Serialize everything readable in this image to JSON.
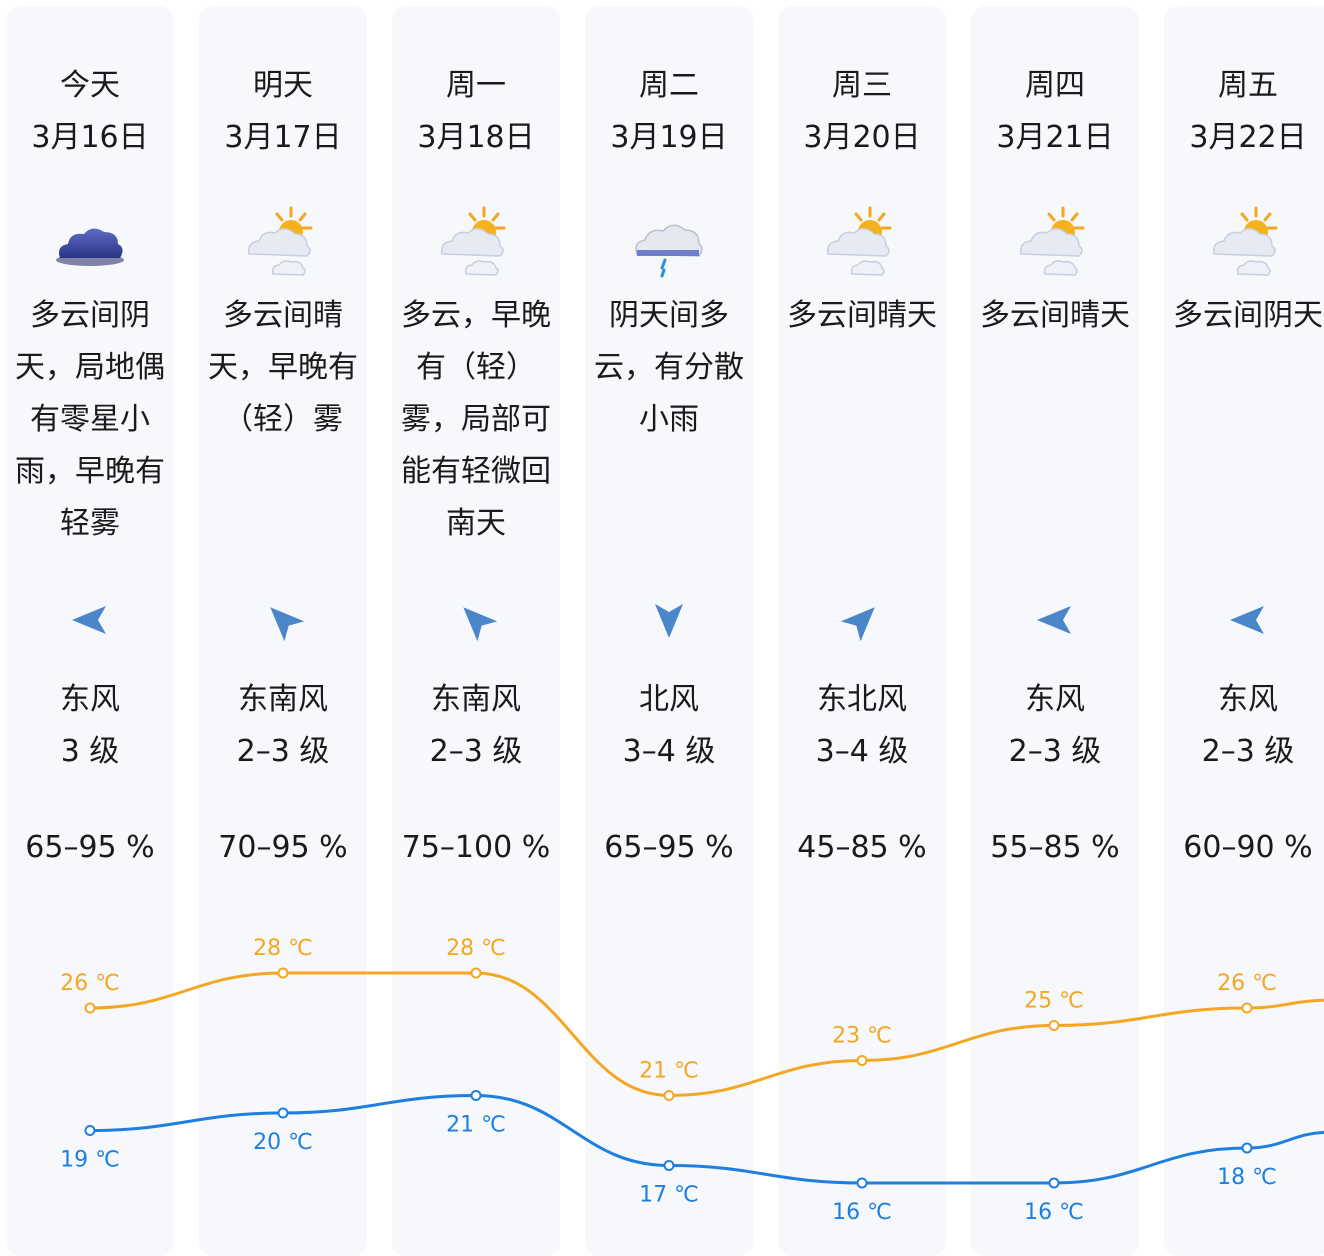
{
  "days": [
    {
      "day": "今天",
      "date": "3月16日",
      "icon": "cloudy-dark-icon",
      "desc": "多云间阴天，局地偶有零星小雨，早晚有轻雾",
      "wind_dir": "东风",
      "wind_level": "3 级",
      "humidity": "65–95 %",
      "high": "26 ℃",
      "low": "19 ℃"
    },
    {
      "day": "明天",
      "date": "3月17日",
      "icon": "partly-sunny-icon",
      "desc": "多云间晴天，早晚有（轻）雾",
      "wind_dir": "东南风",
      "wind_level": "2–3 级",
      "humidity": "70–95 %",
      "high": "28 ℃",
      "low": "20 ℃"
    },
    {
      "day": "周一",
      "date": "3月18日",
      "icon": "partly-sunny-icon",
      "desc": "多云，早晚有（轻）雾，局部可能有轻微回南天",
      "wind_dir": "东南风",
      "wind_level": "2–3 级",
      "humidity": "75–100 %",
      "high": "28 ℃",
      "low": "21 ℃"
    },
    {
      "day": "周二",
      "date": "3月19日",
      "icon": "cloud-rain-icon",
      "desc": "阴天间多云，有分散小雨",
      "wind_dir": "北风",
      "wind_level": "3–4 级",
      "humidity": "65–95 %",
      "high": "21 ℃",
      "low": "17 ℃"
    },
    {
      "day": "周三",
      "date": "3月20日",
      "icon": "partly-sunny-icon",
      "desc": "多云间晴天",
      "wind_dir": "东北风",
      "wind_level": "3–4 级",
      "humidity": "45–85 %",
      "high": "23 ℃",
      "low": "16 ℃"
    },
    {
      "day": "周四",
      "date": "3月21日",
      "icon": "partly-sunny-icon",
      "desc": "多云间晴天",
      "wind_dir": "东风",
      "wind_level": "2–3 级",
      "humidity": "55–85 %",
      "high": "25 ℃",
      "low": "16 ℃"
    },
    {
      "day": "周五",
      "date": "3月22日",
      "icon": "partly-sunny-icon",
      "desc": "多云间阴天",
      "wind_dir": "东风",
      "wind_level": "2–3 级",
      "humidity": "60–90 %",
      "high": "26 ℃",
      "low": "18 ℃"
    }
  ],
  "chart_data": {
    "type": "line",
    "categories": [
      "3月16日",
      "3月17日",
      "3月18日",
      "3月19日",
      "3月20日",
      "3月21日",
      "3月22日"
    ],
    "series": [
      {
        "values": [
          26,
          28,
          28,
          21,
          23,
          25,
          26
        ]
      },
      {
        "values": [
          19,
          20,
          21,
          17,
          16,
          16,
          18
        ]
      }
    ],
    "unit": "℃",
    "grid": false
  },
  "colors": {
    "high_line": "#f5a623",
    "low_line": "#1e7fe0",
    "column_bg": "#f6f8fc",
    "wind_arrow": "#4a86c8"
  }
}
